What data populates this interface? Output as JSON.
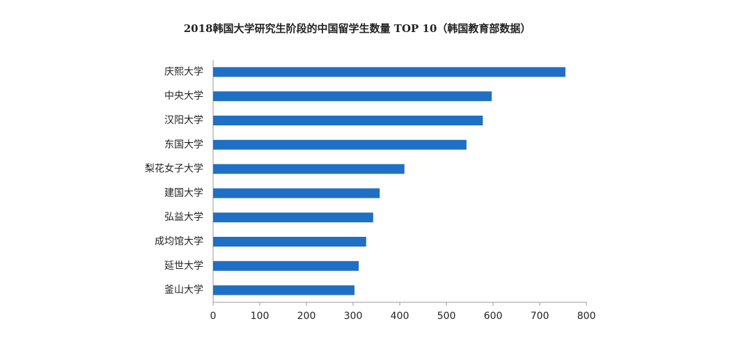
{
  "chart_data": {
    "type": "bar",
    "orientation": "horizontal",
    "title": "2018韩国大学研究生阶段的中国留学生数量 TOP 10（韩国教育部数据）",
    "categories": [
      "庆熙大学",
      "中央大学",
      "汉阳大学",
      "东国大学",
      "梨花女子大学",
      "建国大学",
      "弘益大学",
      "成均馆大学",
      "延世大学",
      "釜山大学"
    ],
    "values": [
      755,
      597,
      578,
      543,
      410,
      357,
      343,
      328,
      312,
      303
    ],
    "color": "#1f6fc5",
    "xlim": [
      0,
      800
    ],
    "xticks": [
      0,
      100,
      200,
      300,
      400,
      500,
      600,
      700,
      800
    ],
    "grid": false
  }
}
